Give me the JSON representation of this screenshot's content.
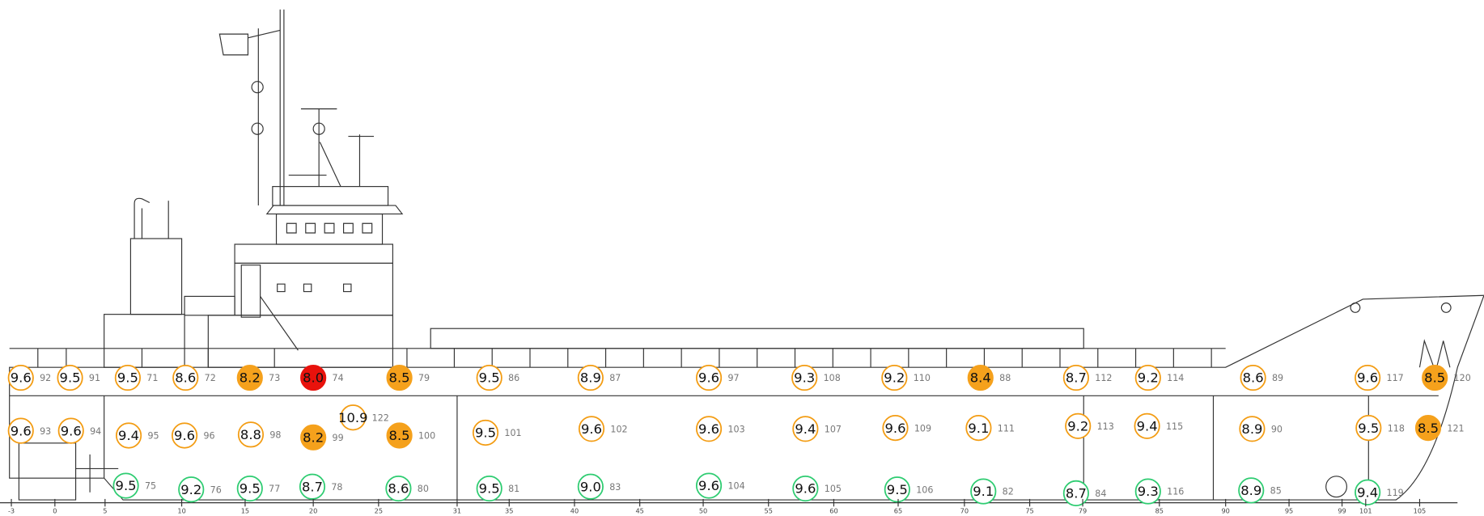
{
  "points": [
    {
      "value": "9.6",
      "id": 92,
      "color": "#f39c12",
      "filled": false
    },
    {
      "value": "9.5",
      "id": 91,
      "color": "#f39c12",
      "filled": false
    },
    {
      "value": "9.5",
      "id": 71,
      "color": "#f39c12",
      "filled": false
    },
    {
      "value": "8.6",
      "id": 72,
      "color": "#f39c12",
      "filled": false
    },
    {
      "value": "8.2",
      "id": 73,
      "color": "#f5a11c",
      "filled": true
    },
    {
      "value": "8.0",
      "id": 74,
      "color": "#e8120c",
      "filled": true
    },
    {
      "value": "8.5",
      "id": 79,
      "color": "#f5a11c",
      "filled": true
    },
    {
      "value": "9.5",
      "id": 86,
      "color": "#f39c12",
      "filled": false
    },
    {
      "value": "8.9",
      "id": 87,
      "color": "#f39c12",
      "filled": false
    },
    {
      "value": "9.6",
      "id": 97,
      "color": "#f39c12",
      "filled": false
    },
    {
      "value": "9.3",
      "id": 108,
      "color": "#f39c12",
      "filled": false
    },
    {
      "value": "9.2",
      "id": 110,
      "color": "#f39c12",
      "filled": false
    },
    {
      "value": "8.4",
      "id": 88,
      "color": "#f5a11c",
      "filled": true
    },
    {
      "value": "8.7",
      "id": 112,
      "color": "#f39c12",
      "filled": false
    },
    {
      "value": "9.2",
      "id": 114,
      "color": "#f39c12",
      "filled": false
    },
    {
      "value": "8.6",
      "id": 89,
      "color": "#f39c12",
      "filled": false
    },
    {
      "value": "9.6",
      "id": 117,
      "color": "#f39c12",
      "filled": false
    },
    {
      "value": "8.5",
      "id": 120,
      "color": "#f5a11c",
      "filled": true
    },
    {
      "value": "9.6",
      "id": 93,
      "color": "#f39c12",
      "filled": false
    },
    {
      "value": "9.6",
      "id": 94,
      "color": "#f39c12",
      "filled": false
    },
    {
      "value": "9.4",
      "id": 95,
      "color": "#f39c12",
      "filled": false
    },
    {
      "value": "9.6",
      "id": 96,
      "color": "#f39c12",
      "filled": false
    },
    {
      "value": "8.8",
      "id": 98,
      "color": "#f39c12",
      "filled": false
    },
    {
      "value": "8.2",
      "id": 99,
      "color": "#f5a11c",
      "filled": true
    },
    {
      "value": "10.9",
      "id": 122,
      "color": "#f39c12",
      "filled": false
    },
    {
      "value": "8.5",
      "id": 100,
      "color": "#f5a11c",
      "filled": true
    },
    {
      "value": "9.5",
      "id": 101,
      "color": "#f39c12",
      "filled": false
    },
    {
      "value": "9.6",
      "id": 102,
      "color": "#f39c12",
      "filled": false
    },
    {
      "value": "9.6",
      "id": 103,
      "color": "#f39c12",
      "filled": false
    },
    {
      "value": "9.4",
      "id": 107,
      "color": "#f39c12",
      "filled": false
    },
    {
      "value": "9.6",
      "id": 109,
      "color": "#f39c12",
      "filled": false
    },
    {
      "value": "9.1",
      "id": 111,
      "color": "#f39c12",
      "filled": false
    },
    {
      "value": "9.2",
      "id": 113,
      "color": "#f39c12",
      "filled": false
    },
    {
      "value": "9.4",
      "id": 115,
      "color": "#f39c12",
      "filled": false
    },
    {
      "value": "8.9",
      "id": 90,
      "color": "#f39c12",
      "filled": false
    },
    {
      "value": "9.5",
      "id": 118,
      "color": "#f39c12",
      "filled": false
    },
    {
      "value": "8.5",
      "id": 121,
      "color": "#f5a11c",
      "filled": true
    },
    {
      "value": "9.5",
      "id": 75,
      "color": "#2ecc71",
      "filled": false
    },
    {
      "value": "9.2",
      "id": 76,
      "color": "#2ecc71",
      "filled": false
    },
    {
      "value": "9.5",
      "id": 77,
      "color": "#2ecc71",
      "filled": false
    },
    {
      "value": "8.7",
      "id": 78,
      "color": "#2ecc71",
      "filled": false
    },
    {
      "value": "8.6",
      "id": 80,
      "color": "#2ecc71",
      "filled": false
    },
    {
      "value": "9.5",
      "id": 81,
      "color": "#2ecc71",
      "filled": false
    },
    {
      "value": "9.0",
      "id": 83,
      "color": "#2ecc71",
      "filled": false
    },
    {
      "value": "9.6",
      "id": 104,
      "color": "#2ecc71",
      "filled": false
    },
    {
      "value": "9.6",
      "id": 105,
      "color": "#2ecc71",
      "filled": false
    },
    {
      "value": "9.5",
      "id": 106,
      "color": "#2ecc71",
      "filled": false
    },
    {
      "value": "9.1",
      "id": 82,
      "color": "#2ecc71",
      "filled": false
    },
    {
      "value": "8.7",
      "id": 84,
      "color": "#2ecc71",
      "filled": false
    },
    {
      "value": "9.3",
      "id": 116,
      "color": "#2ecc71",
      "filled": false
    },
    {
      "value": "8.9",
      "id": 85,
      "color": "#2ecc71",
      "filled": false
    },
    {
      "value": "9.4",
      "id": 119,
      "color": "#2ecc71",
      "filled": false
    }
  ],
  "ruler": [
    "-3",
    "0",
    "5",
    "10",
    "15",
    "20",
    "25",
    "31",
    "35",
    "40",
    "45",
    "50",
    "55",
    "60",
    "65",
    "70",
    "75",
    "79",
    "85",
    "90",
    "95",
    "99",
    "101",
    "105"
  ]
}
